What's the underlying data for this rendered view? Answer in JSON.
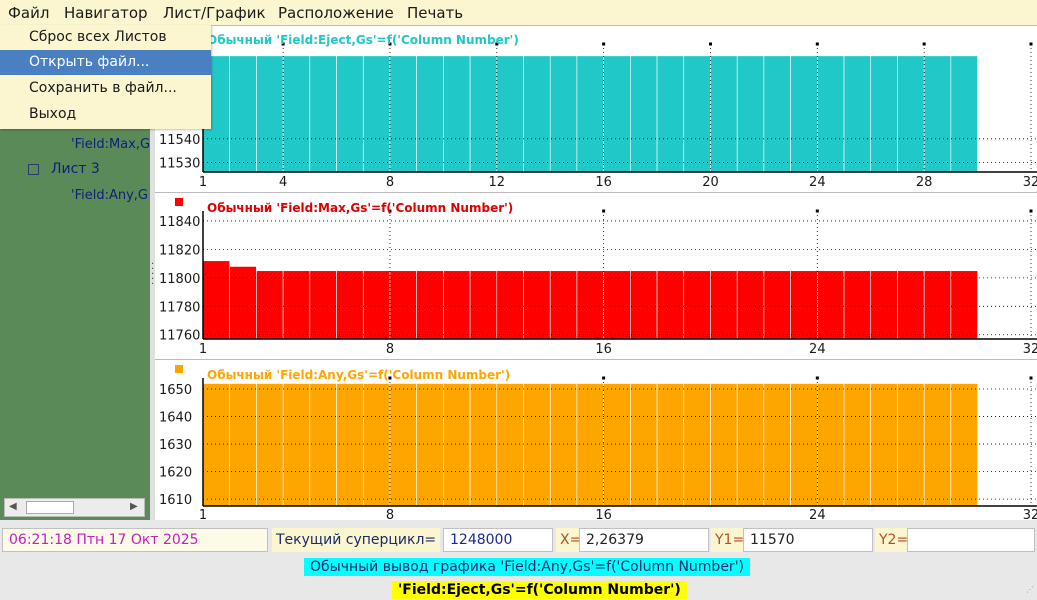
{
  "menu": {
    "file": "Файл",
    "navigator": "Навигатор",
    "sheet_chart": "Лист/График",
    "layout": "Расположение",
    "print": "Печать"
  },
  "file_menu": {
    "items": [
      "Сброс всех Листов",
      "Открыть файл...",
      "Сохранить в файл...",
      "Выход"
    ],
    "highlighted": "Открыть файл..."
  },
  "tree": {
    "item_max": "'Field:Max,G",
    "sheet3": "Лист 3",
    "item_any": "'Field:Any,G"
  },
  "status": {
    "datetime": "06:21:18 Птн 17 Окт 2025",
    "supercycle_label": "Текущий суперцикл=",
    "supercycle_value": "1248000",
    "x_label": "X=",
    "x_value": "2,26379",
    "y1_label": "Y1=",
    "y1_value": "11570",
    "y2_label": "Y2=",
    "y2_value": "",
    "banner_cyan": "Обычный вывод графика 'Field:Any,Gs'=f('Column Number')",
    "banner_yellow": "'Field:Eject,Gs'=f('Column Number')"
  },
  "colors": {
    "eject": "#20c8c8",
    "max": "#ff0000",
    "any": "#ffa500",
    "sidebar": "#5a8a58",
    "menubar": "#fbf6d0",
    "highlight": "#4a7fc1",
    "banner_cyan": "#00ffff",
    "banner_yellow": "#ffff00",
    "datetime": "#c020c0"
  },
  "chart_data": [
    {
      "type": "bar",
      "title": "Обычный   'Field:Eject,Gs'=f('Column Number')",
      "xlim": [
        1,
        32
      ],
      "xticks": [
        1,
        4,
        8,
        12,
        16,
        20,
        24,
        28,
        32
      ],
      "ylim": [
        11526,
        11580
      ],
      "yticks": [
        11530,
        11540
      ],
      "x": [
        1,
        2,
        3,
        4,
        5,
        6,
        7,
        8,
        9,
        10,
        11,
        12,
        13,
        14,
        15,
        16,
        17,
        18,
        19,
        20,
        21,
        22,
        23,
        24,
        25,
        26,
        27,
        28,
        29
      ],
      "values": [
        11575,
        11575,
        11575,
        11575,
        11575,
        11575,
        11575,
        11575,
        11575,
        11575,
        11575,
        11575,
        11575,
        11575,
        11575,
        11575,
        11575,
        11575,
        11575,
        11575,
        11575,
        11575,
        11575,
        11575,
        11575,
        11575,
        11575,
        11575,
        11575
      ]
    },
    {
      "type": "bar",
      "title": "Обычный   'Field:Max,Gs'=f('Column Number')",
      "xlim": [
        1,
        32
      ],
      "xticks": [
        1,
        8,
        16,
        24,
        32
      ],
      "ylim": [
        11757,
        11847
      ],
      "yticks": [
        11760,
        11780,
        11800,
        11820,
        11840
      ],
      "x": [
        1,
        2,
        3,
        4,
        5,
        6,
        7,
        8,
        9,
        10,
        11,
        12,
        13,
        14,
        15,
        16,
        17,
        18,
        19,
        20,
        21,
        22,
        23,
        24,
        25,
        26,
        27,
        28,
        29
      ],
      "values": [
        11812,
        11808,
        11805,
        11805,
        11805,
        11805,
        11805,
        11805,
        11805,
        11805,
        11805,
        11805,
        11805,
        11805,
        11805,
        11805,
        11805,
        11805,
        11805,
        11805,
        11805,
        11805,
        11805,
        11805,
        11805,
        11805,
        11805,
        11805,
        11805
      ]
    },
    {
      "type": "bar",
      "title": "Обычный   'Field:Any,Gs'=f('Column Number')",
      "xlim": [
        1,
        32
      ],
      "xticks": [
        1,
        8,
        16,
        24,
        32
      ],
      "ylim": [
        1607.5,
        1654
      ],
      "yticks": [
        1610,
        1620,
        1630,
        1640,
        1650
      ],
      "x": [
        1,
        2,
        3,
        4,
        5,
        6,
        7,
        8,
        9,
        10,
        11,
        12,
        13,
        14,
        15,
        16,
        17,
        18,
        19,
        20,
        21,
        22,
        23,
        24,
        25,
        26,
        27,
        28,
        29
      ],
      "values": [
        1652,
        1652,
        1652,
        1652,
        1652,
        1652,
        1652,
        1652,
        1652,
        1652,
        1652,
        1652,
        1652,
        1652,
        1652,
        1652,
        1652,
        1652,
        1652,
        1652,
        1652,
        1652,
        1652,
        1652,
        1652,
        1652,
        1652,
        1652,
        1652
      ]
    }
  ]
}
